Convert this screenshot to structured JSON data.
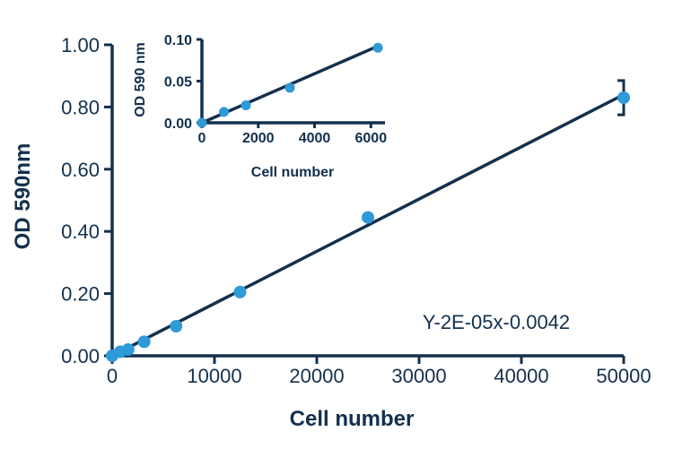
{
  "chart_data": [
    {
      "type": "scatter",
      "xlabel": "Cell number",
      "ylabel": "OD 590nm",
      "xlim": [
        0,
        50000
      ],
      "ylim": [
        0,
        1.0
      ],
      "xticks": [
        "0",
        "10000",
        "20000",
        "30000",
        "40000",
        "50000"
      ],
      "yticks": [
        "0.00",
        "0.20",
        "0.40",
        "0.60",
        "0.80",
        "1.00"
      ],
      "series": [
        {
          "x": [
            0,
            781,
            1563,
            3125,
            6250,
            12500,
            25000,
            50000
          ],
          "y": [
            0.0,
            0.013,
            0.02,
            0.045,
            0.095,
            0.205,
            0.445,
            0.83
          ],
          "error_bars": [
            null,
            null,
            null,
            null,
            null,
            null,
            null,
            0.055
          ]
        }
      ],
      "fit_line": {
        "x": [
          0,
          50000
        ],
        "y": [
          0,
          0.84
        ]
      },
      "annotation": "Y-2E-05x-0.0042"
    },
    {
      "type": "scatter",
      "inset": true,
      "xlabel": "Cell number",
      "ylabel": "OD 590 nm",
      "xlim": [
        0,
        6500
      ],
      "ylim": [
        0,
        0.1
      ],
      "xticks": [
        "0",
        "2000",
        "4000",
        "6000"
      ],
      "yticks": [
        "0.00",
        "0.05",
        "0.10"
      ],
      "series": [
        {
          "x": [
            0,
            781,
            1563,
            3125,
            6250
          ],
          "y": [
            0.0,
            0.013,
            0.021,
            0.042,
            0.09
          ]
        }
      ],
      "fit_line": {
        "x": [
          0,
          6250
        ],
        "y": [
          0,
          0.092
        ]
      }
    }
  ],
  "colors": {
    "axis": "#13304d",
    "point": "#2f9ad8"
  }
}
